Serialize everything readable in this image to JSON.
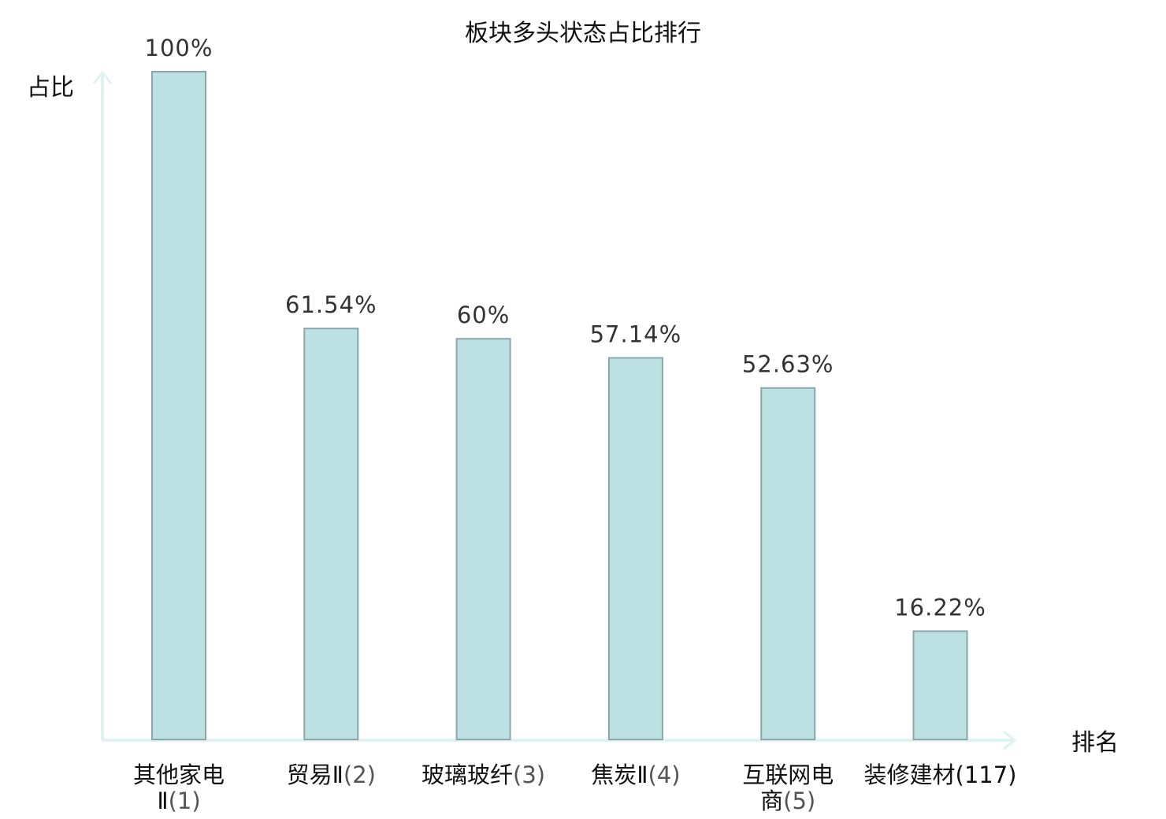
{
  "chart_data": {
    "type": "bar",
    "title": "板块多头状态占比排行",
    "xlabel": "排名",
    "ylabel": "占比",
    "ylim": [
      0,
      100
    ],
    "categories": [
      {
        "name_lines": [
          "其他家电",
          "Ⅱ"
        ],
        "rank": "(1)",
        "highlight": false
      },
      {
        "name_lines": [
          "贸易Ⅱ"
        ],
        "rank": "(2)",
        "highlight": false
      },
      {
        "name_lines": [
          "玻璃玻纤"
        ],
        "rank": "(3)",
        "highlight": false
      },
      {
        "name_lines": [
          "焦炭Ⅱ"
        ],
        "rank": "(4)",
        "highlight": false
      },
      {
        "name_lines": [
          "互联网电",
          "商"
        ],
        "rank": "(5)",
        "highlight": false
      },
      {
        "name_lines": [
          "装修建材"
        ],
        "rank": "(117)",
        "highlight": true
      }
    ],
    "values": [
      100,
      61.54,
      60,
      57.14,
      52.63,
      16.22
    ],
    "value_labels": [
      "100%",
      "61.54%",
      "60%",
      "57.14%",
      "52.63%",
      "16.22%"
    ],
    "grid": false,
    "colors": {
      "bar_fill": "#bde0e3",
      "bar_stroke": "#8aa6aa",
      "axis": "#dff1f0",
      "highlight_text": "#e8141d"
    }
  }
}
